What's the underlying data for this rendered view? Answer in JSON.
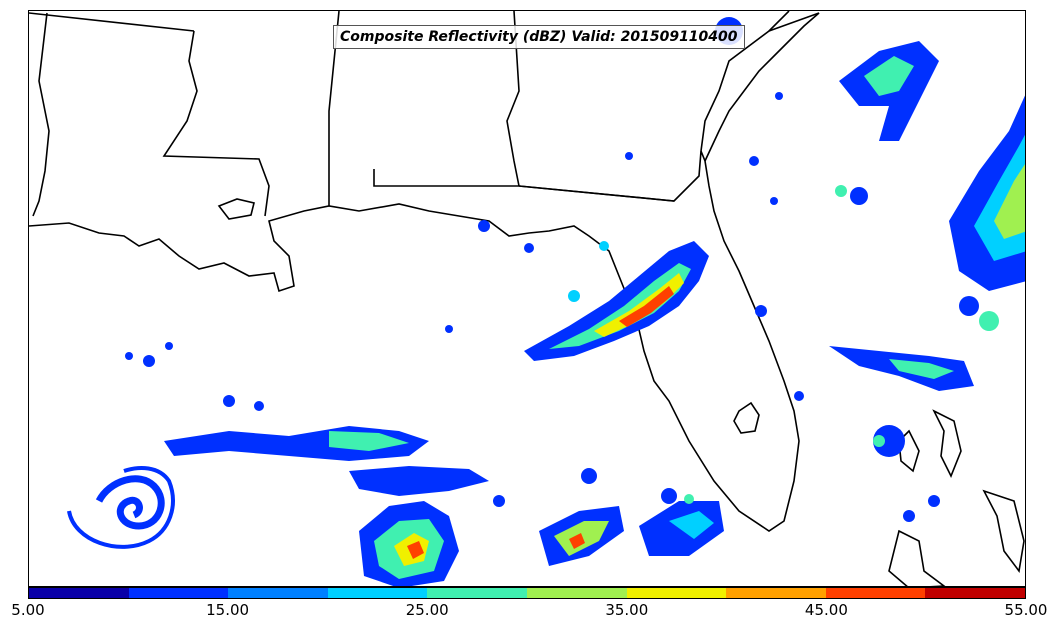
{
  "map": {
    "title": "Composite Reflectivity (dBZ) Valid: 201509110400",
    "product": "Composite Reflectivity",
    "units": "dBZ",
    "valid_time": "201509110400"
  },
  "colorbar": {
    "colors": [
      "#0a00a8",
      "#0030ff",
      "#0080ff",
      "#00d0ff",
      "#40f0b0",
      "#a0f050",
      "#f0f000",
      "#ffa000",
      "#ff4000",
      "#c00000"
    ],
    "tick_labels": [
      "5.00",
      "15.00",
      "25.00",
      "35.00",
      "45.00",
      "55.00"
    ],
    "min": 5,
    "max": 55,
    "interval": 5
  }
}
